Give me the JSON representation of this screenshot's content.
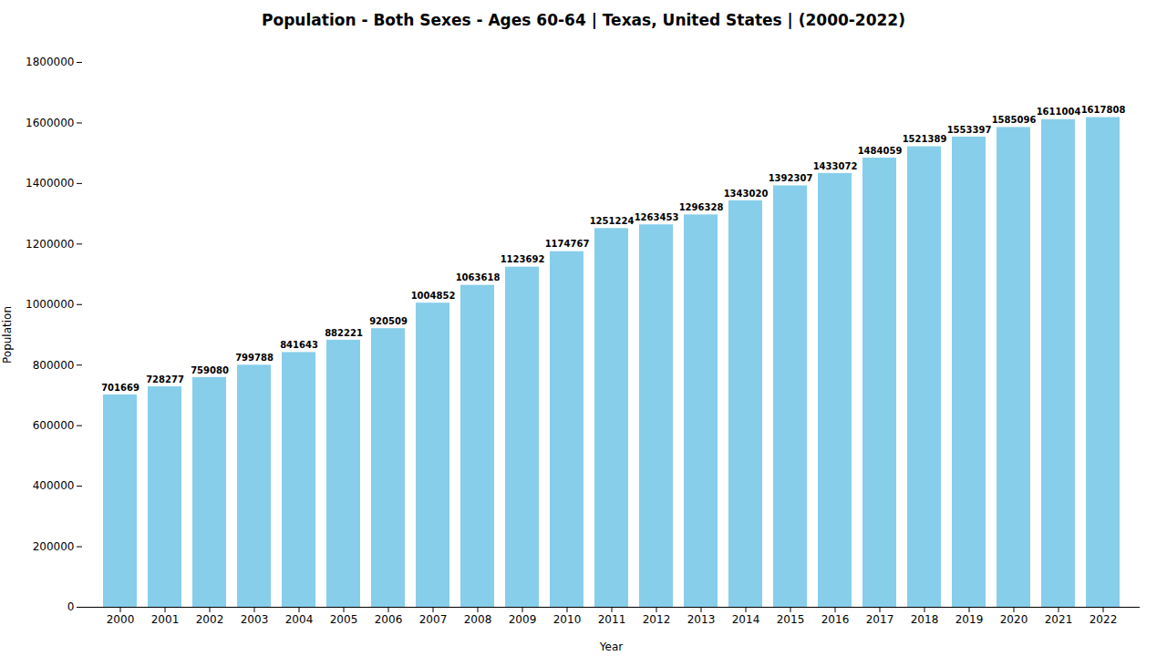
{
  "chart_data": {
    "type": "bar",
    "title": "Population - Both Sexes - Ages 60-64 | Texas, United States |  (2000-2022)",
    "x_label": "Year",
    "y_label": "Population",
    "categories": [
      "2000",
      "2001",
      "2002",
      "2003",
      "2004",
      "2005",
      "2006",
      "2007",
      "2008",
      "2009",
      "2010",
      "2011",
      "2012",
      "2013",
      "2014",
      "2015",
      "2016",
      "2017",
      "2018",
      "2019",
      "2020",
      "2021",
      "2022"
    ],
    "values": [
      701669,
      728277,
      759080,
      799788,
      841643,
      882221,
      920509,
      1004852,
      1063618,
      1123692,
      1174767,
      1251224,
      1263453,
      1296328,
      1343020,
      1392307,
      1433072,
      1484059,
      1521389,
      1553397,
      1585096,
      1611004,
      1617808
    ],
    "color": "#87CEEB",
    "ylim": [
      0,
      1800000
    ],
    "yticks": [
      0,
      200000,
      400000,
      600000,
      800000,
      1000000,
      1200000,
      1400000,
      1600000,
      1800000
    ],
    "grid": false,
    "data_labels": true
  }
}
